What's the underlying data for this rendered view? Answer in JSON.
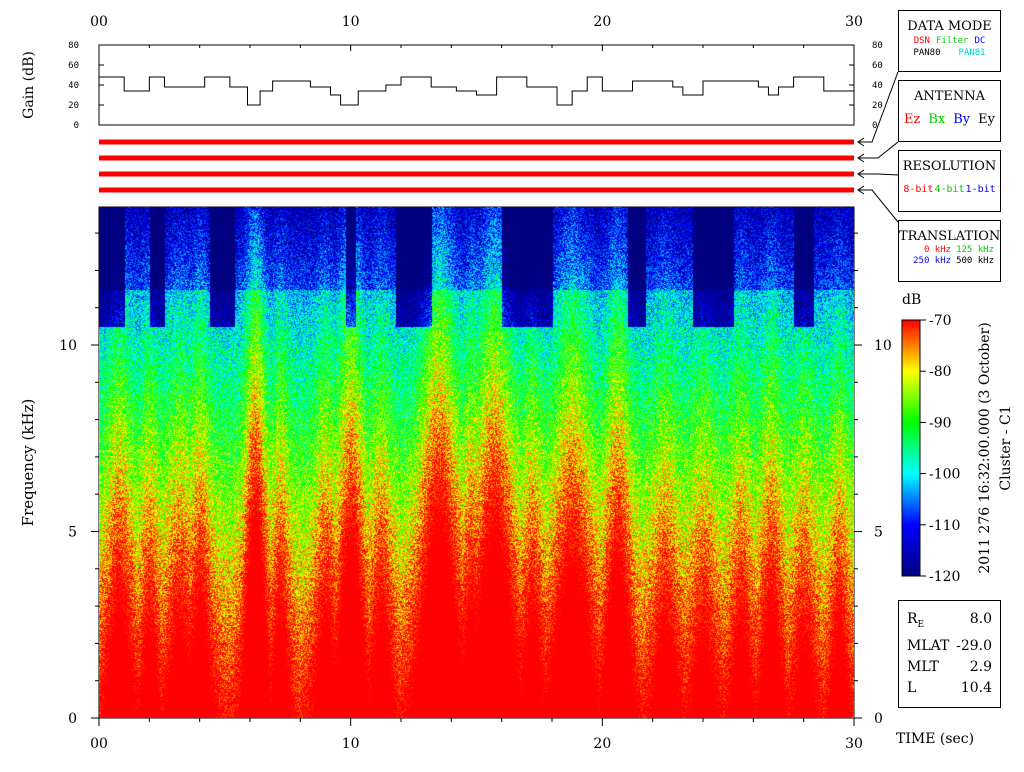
{
  "chart_data": {
    "type": "heatmap",
    "x_ticks": [
      "00",
      "10",
      "20",
      "30"
    ],
    "xlabel": "TIME (sec)",
    "xlim": [
      0,
      30
    ],
    "ylabel": "Frequency (kHz)",
    "y_ticks": [
      "0",
      "5",
      "10"
    ],
    "ylim": [
      0,
      13.7
    ],
    "colorbar": {
      "unit": "dB",
      "ticks": [
        "-70",
        "-80",
        "-90",
        "-100",
        "-110",
        "-120"
      ],
      "range": [
        -120,
        -70
      ]
    },
    "gain_panel": {
      "ylabel": "Gain (dB)",
      "y_ticks": [
        "80",
        "60",
        "40",
        "20",
        "0"
      ],
      "ylim": [
        0,
        80
      ],
      "steps": [
        {
          "t0": 0.0,
          "t1": 1.0,
          "gain": 48
        },
        {
          "t0": 1.0,
          "t1": 2.0,
          "gain": 34
        },
        {
          "t0": 2.0,
          "t1": 2.6,
          "gain": 48
        },
        {
          "t0": 2.6,
          "t1": 4.2,
          "gain": 38
        },
        {
          "t0": 4.2,
          "t1": 5.2,
          "gain": 48
        },
        {
          "t0": 5.2,
          "t1": 5.9,
          "gain": 38
        },
        {
          "t0": 5.9,
          "t1": 6.4,
          "gain": 20
        },
        {
          "t0": 6.4,
          "t1": 6.9,
          "gain": 34
        },
        {
          "t0": 6.9,
          "t1": 8.4,
          "gain": 44
        },
        {
          "t0": 8.4,
          "t1": 9.2,
          "gain": 38
        },
        {
          "t0": 9.2,
          "t1": 9.6,
          "gain": 30
        },
        {
          "t0": 9.6,
          "t1": 10.3,
          "gain": 20
        },
        {
          "t0": 10.3,
          "t1": 11.4,
          "gain": 34
        },
        {
          "t0": 11.4,
          "t1": 12.0,
          "gain": 40
        },
        {
          "t0": 12.0,
          "t1": 13.2,
          "gain": 48
        },
        {
          "t0": 13.2,
          "t1": 14.2,
          "gain": 38
        },
        {
          "t0": 14.2,
          "t1": 15.0,
          "gain": 34
        },
        {
          "t0": 15.0,
          "t1": 15.8,
          "gain": 30
        },
        {
          "t0": 15.8,
          "t1": 17.0,
          "gain": 48
        },
        {
          "t0": 17.0,
          "t1": 18.2,
          "gain": 38
        },
        {
          "t0": 18.2,
          "t1": 18.8,
          "gain": 20
        },
        {
          "t0": 18.8,
          "t1": 19.4,
          "gain": 34
        },
        {
          "t0": 19.4,
          "t1": 20.0,
          "gain": 48
        },
        {
          "t0": 20.0,
          "t1": 21.2,
          "gain": 34
        },
        {
          "t0": 21.2,
          "t1": 22.8,
          "gain": 44
        },
        {
          "t0": 22.8,
          "t1": 23.2,
          "gain": 38
        },
        {
          "t0": 23.2,
          "t1": 24.0,
          "gain": 30
        },
        {
          "t0": 24.0,
          "t1": 26.2,
          "gain": 44
        },
        {
          "t0": 26.2,
          "t1": 26.6,
          "gain": 38
        },
        {
          "t0": 26.6,
          "t1": 27.0,
          "gain": 30
        },
        {
          "t0": 27.0,
          "t1": 27.6,
          "gain": 38
        },
        {
          "t0": 27.6,
          "t1": 28.8,
          "gain": 48
        },
        {
          "t0": 28.8,
          "t1": 30.0,
          "gain": 34
        }
      ]
    },
    "status_bars": {
      "count": 4,
      "color": "#ff0000"
    },
    "title_vertical": "2011 276 16:32:00.000 (3 October)",
    "subtitle_vertical": "Cluster - C1",
    "colormap_stops": [
      "#000080",
      "#0000ff",
      "#00ffff",
      "#00ff00",
      "#ffff00",
      "#ff0000"
    ]
  },
  "legend": {
    "data_mode": {
      "title": "DATA MODE",
      "items_row1": [
        {
          "text": "DSN",
          "color": "#ff0000"
        },
        {
          "text": "Filter",
          "color": "#00cc00"
        },
        {
          "text": "DC",
          "color": "#0000ff"
        }
      ],
      "items_row2": [
        {
          "text": "PAN80",
          "color": "#000000"
        },
        {
          "text": "PAN81",
          "color": "#00cccc"
        }
      ]
    },
    "antenna": {
      "title": "ANTENNA",
      "items": [
        {
          "text": "Ez",
          "color": "#ff0000"
        },
        {
          "text": "Bx",
          "color": "#00cc00"
        },
        {
          "text": "By",
          "color": "#0000ff"
        },
        {
          "text": "Ey",
          "color": "#000000"
        }
      ]
    },
    "resolution": {
      "title": "RESOLUTION",
      "items": [
        {
          "text": "8-bit",
          "color": "#ff0000"
        },
        {
          "text": "4-bit",
          "color": "#00cc00"
        },
        {
          "text": "1-bit",
          "color": "#0000ff"
        }
      ]
    },
    "translation": {
      "title": "TRANSLATION",
      "items_row1": [
        {
          "text": "0 kHz",
          "color": "#ff0000"
        },
        {
          "text": "125 kHz",
          "color": "#00cc00"
        }
      ],
      "items_row2": [
        {
          "text": "250 kHz",
          "color": "#0000ff"
        },
        {
          "text": "500 kHz",
          "color": "#000000"
        }
      ]
    }
  },
  "ephemeris": [
    {
      "label": "R",
      "sub": "E",
      "value": "8.0"
    },
    {
      "label": "MLAT",
      "sub": "",
      "value": "-29.0"
    },
    {
      "label": "MLT",
      "sub": "",
      "value": "2.9"
    },
    {
      "label": "L",
      "sub": "",
      "value": "10.4"
    }
  ]
}
